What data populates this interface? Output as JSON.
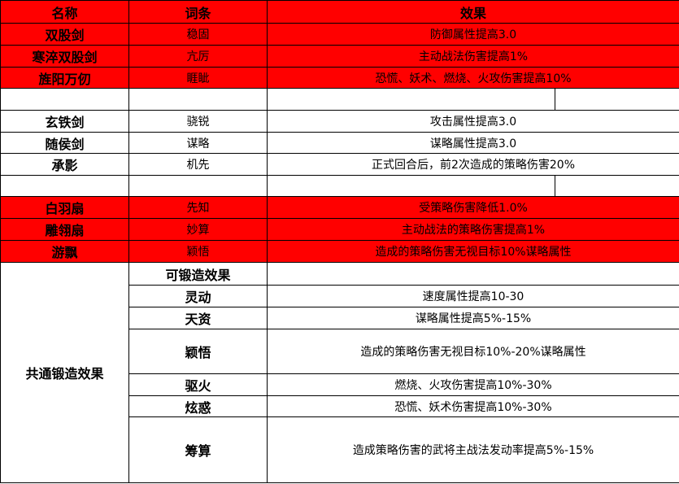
{
  "header": {
    "name": "名称",
    "entry": "词条",
    "effect": "效果"
  },
  "colors": {
    "highlight_row": "#ff0000",
    "border": "#000000"
  },
  "red_group_1": [
    {
      "name": "双股剑",
      "entry": "稳固",
      "effect": "防御属性提高3.0"
    },
    {
      "name": "寒淬双股剑",
      "entry": "亢厉",
      "effect": "主动战法伤害提高1%"
    },
    {
      "name": "旌阳万仞",
      "entry": "睚眦",
      "effect": "恐慌、妖术、燃烧、火攻伤害提高10%"
    }
  ],
  "white_group": [
    {
      "name": "玄铁剑",
      "entry": "骁锐",
      "effect": "攻击属性提高3.0"
    },
    {
      "name": "随侯剑",
      "entry": "谋略",
      "effect": "谋略属性提高3.0"
    },
    {
      "name": "承影",
      "entry": "机先",
      "effect": "正式回合后，前2次造成的策略伤害20%"
    }
  ],
  "red_group_2": [
    {
      "name": "白羽扇",
      "entry": "先知",
      "effect": "受策略伤害降低1.0%"
    },
    {
      "name": "雕翎扇",
      "entry": "妙算",
      "effect": "主动战法的策略伤害提高1%"
    },
    {
      "name": "游飘",
      "entry": "颖悟",
      "effect": "造成的策略伤害无视目标10%谋略属性"
    }
  ],
  "forge": {
    "title": "共通锻造效果",
    "subheader": "可锻造效果",
    "items": [
      {
        "entry": "灵动",
        "effect": "速度属性提高10-30"
      },
      {
        "entry": "天资",
        "effect": "谋略属性提高5%-15%"
      },
      {
        "entry": "颖悟",
        "effect": "造成的策略伤害无视目标10%-20%谋略属性"
      },
      {
        "entry": "驱火",
        "effect": "燃烧、火攻伤害提高10%-30%"
      },
      {
        "entry": "炫惑",
        "effect": "恐慌、妖术伤害提高10%-30%"
      },
      {
        "entry": "筹算",
        "effect": "造成策略伤害的武将主战法发动率提高5%-15%"
      }
    ]
  }
}
